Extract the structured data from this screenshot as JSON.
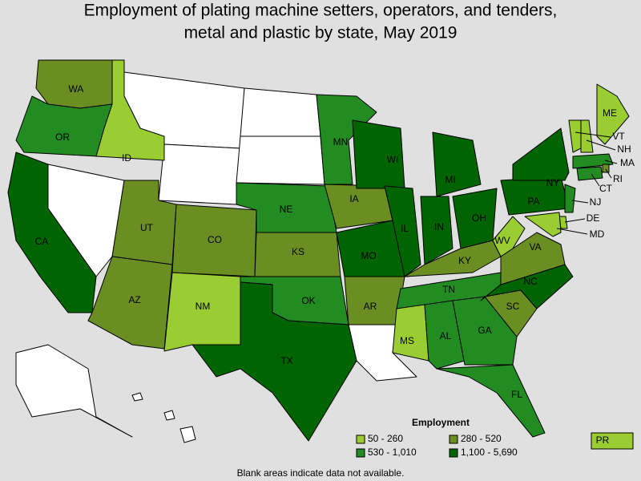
{
  "title": [
    "Employment of plating machine setters, operators, and tenders,",
    "metal and plastic by state, May 2019"
  ],
  "states": [
    {
      "label": "WA",
      "color": "#6b8e23"
    },
    {
      "label": "OR",
      "color": "#228b22"
    },
    {
      "label": "ID",
      "color": "#9acd32"
    },
    {
      "label": "CA",
      "color": "#006400"
    },
    {
      "label": "UT",
      "color": "#6b8e23"
    },
    {
      "label": "AZ",
      "color": "#6b8e23"
    },
    {
      "label": "CO",
      "color": "#6b8e23"
    },
    {
      "label": "NM",
      "color": "#9acd32"
    },
    {
      "label": "NE",
      "color": "#228b22"
    },
    {
      "label": "KS",
      "color": "#6b8e23"
    },
    {
      "label": "OK",
      "color": "#228b22"
    },
    {
      "label": "TX",
      "color": "#006400"
    },
    {
      "label": "MN",
      "color": "#228b22"
    },
    {
      "label": "IA",
      "color": "#6b8e23"
    },
    {
      "label": "MO",
      "color": "#006400"
    },
    {
      "label": "AR",
      "color": "#6b8e23"
    },
    {
      "label": "WI",
      "color": "#006400"
    },
    {
      "label": "IL",
      "color": "#006400"
    },
    {
      "label": "IN",
      "color": "#006400"
    },
    {
      "label": "MI",
      "color": "#006400"
    },
    {
      "label": "OH",
      "color": "#006400"
    },
    {
      "label": "KY",
      "color": "#6b8e23"
    },
    {
      "label": "TN",
      "color": "#228b22"
    },
    {
      "label": "MS",
      "color": "#9acd32"
    },
    {
      "label": "AL",
      "color": "#228b22"
    },
    {
      "label": "GA",
      "color": "#228b22"
    },
    {
      "label": "FL",
      "color": "#228b22"
    },
    {
      "label": "SC",
      "color": "#6b8e23"
    },
    {
      "label": "NC",
      "color": "#006400"
    },
    {
      "label": "VA",
      "color": "#6b8e23"
    },
    {
      "label": "WV",
      "color": "#9acd32"
    },
    {
      "label": "PA",
      "color": "#006400"
    },
    {
      "label": "NY",
      "color": "#006400"
    },
    {
      "label": "ME",
      "color": "#9acd32"
    },
    {
      "label": "VT",
      "color": "#9acd32"
    },
    {
      "label": "NH",
      "color": "#9acd32"
    },
    {
      "label": "MA",
      "color": "#228b22"
    },
    {
      "label": "RI",
      "color": "#6b8e23"
    },
    {
      "label": "CT",
      "color": "#228b22"
    },
    {
      "label": "NJ",
      "color": "#228b22"
    },
    {
      "label": "DE",
      "color": "#9acd32"
    },
    {
      "label": "MD",
      "color": "#9acd32"
    },
    {
      "label": "PR",
      "color": "#9acd32"
    }
  ],
  "legend": {
    "title": "Employment",
    "items": [
      {
        "label": "50 - 260",
        "color": "#9acd32"
      },
      {
        "label": "280 - 520",
        "color": "#6b8e23"
      },
      {
        "label": "530 - 1,010",
        "color": "#228b22"
      },
      {
        "label": "1,100 - 5,690",
        "color": "#006400"
      }
    ]
  },
  "note": "Blank areas indicate data not available."
}
